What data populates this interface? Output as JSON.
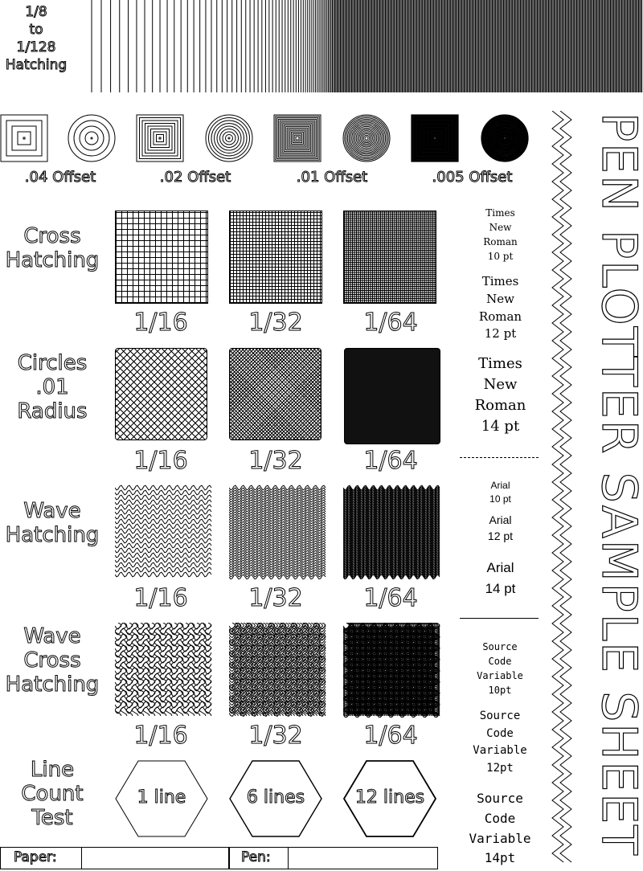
{
  "header": {
    "hatching_label_lines": [
      "1/8",
      "to",
      "1/128",
      "Hatching"
    ]
  },
  "offsets": [
    ".04 Offset",
    ".02 Offset",
    ".01 Offset",
    ".005 Offset"
  ],
  "rows": [
    {
      "label_lines": [
        "Cross",
        "Hatching"
      ],
      "fractions": [
        "1/16",
        "1/32",
        "1/64"
      ]
    },
    {
      "label_lines": [
        "Circles",
        ".01",
        "Radius"
      ],
      "fractions": [
        "1/16",
        "1/32",
        "1/64"
      ]
    },
    {
      "label_lines": [
        "Wave",
        "Hatching"
      ],
      "fractions": [
        "1/16",
        "1/32",
        "1/64"
      ]
    },
    {
      "label_lines": [
        "Wave",
        "Cross",
        "Hatching"
      ],
      "fractions": [
        "1/16",
        "1/32",
        "1/64"
      ]
    },
    {
      "label_lines": [
        "Line",
        "Count",
        "Test"
      ],
      "hex_labels": [
        "1 line",
        "6 lines",
        "12 lines"
      ]
    }
  ],
  "font_samples": {
    "times": [
      {
        "lines": [
          "Times",
          "New",
          "Roman",
          "10 pt"
        ]
      },
      {
        "lines": [
          "Times",
          "New",
          "Roman",
          "12 pt"
        ]
      },
      {
        "lines": [
          "Times",
          "New",
          "Roman",
          "14 pt"
        ]
      }
    ],
    "arial": [
      {
        "lines": [
          "Arial",
          "10 pt"
        ]
      },
      {
        "lines": [
          "Arial",
          "12 pt"
        ]
      },
      {
        "lines": [
          "Arial",
          "14 pt"
        ]
      }
    ],
    "source_code": [
      {
        "lines": [
          "Source",
          "Code",
          "Variable",
          "10pt"
        ]
      },
      {
        "lines": [
          "Source",
          "Code",
          "Variable",
          "12pt"
        ]
      },
      {
        "lines": [
          "Source",
          "Code",
          "Variable",
          "14pt"
        ]
      }
    ]
  },
  "title": "PEN PLOTTER SAMPLE SHEET",
  "footer": {
    "paper_label": "Paper:",
    "pen_label": "Pen:"
  }
}
